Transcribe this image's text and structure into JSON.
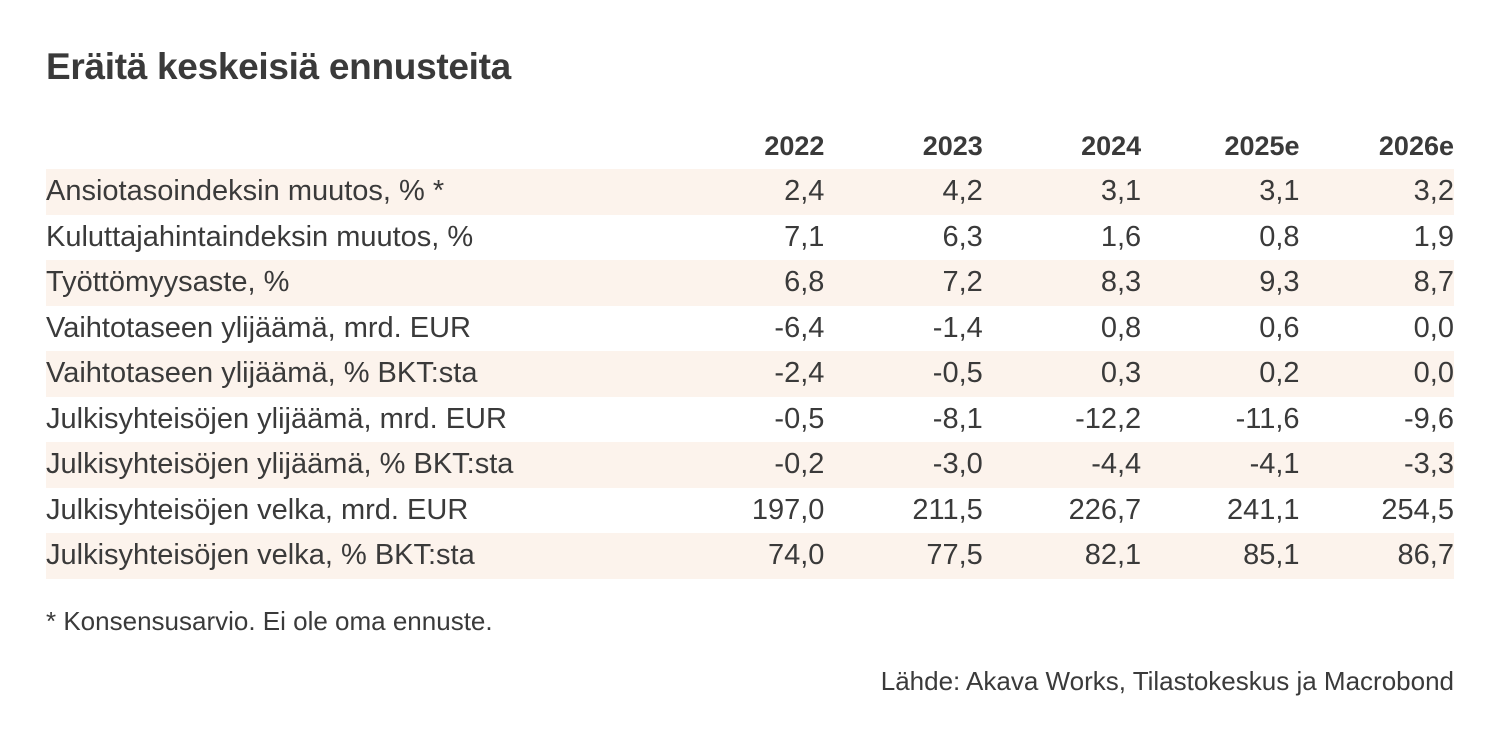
{
  "chart_data": {
    "type": "table",
    "title": "Eräitä keskeisiä ennusteita",
    "columns": [
      "2022",
      "2023",
      "2024",
      "2025e",
      "2026e"
    ],
    "rows": [
      {
        "label": "Ansiotasoindeksin muutos, % *",
        "values": [
          "2,4",
          "4,2",
          "3,1",
          "3,1",
          "3,2"
        ]
      },
      {
        "label": "Kuluttajahintaindeksin muutos, %",
        "values": [
          "7,1",
          "6,3",
          "1,6",
          "0,8",
          "1,9"
        ]
      },
      {
        "label": "Työttömyysaste, %",
        "values": [
          "6,8",
          "7,2",
          "8,3",
          "9,3",
          "8,7"
        ]
      },
      {
        "label": "Vaihtotaseen ylijäämä, mrd. EUR",
        "values": [
          "-6,4",
          "-1,4",
          "0,8",
          "0,6",
          "0,0"
        ]
      },
      {
        "label": "Vaihtotaseen ylijäämä, % BKT:sta",
        "values": [
          "-2,4",
          "-0,5",
          "0,3",
          "0,2",
          "0,0"
        ]
      },
      {
        "label": "Julkisyhteisöjen ylijäämä, mrd. EUR",
        "values": [
          "-0,5",
          "-8,1",
          "-12,2",
          "-11,6",
          "-9,6"
        ]
      },
      {
        "label": "Julkisyhteisöjen ylijäämä, % BKT:sta",
        "values": [
          "-0,2",
          "-3,0",
          "-4,4",
          "-4,1",
          "-3,3"
        ]
      },
      {
        "label": "Julkisyhteisöjen velka, mrd. EUR",
        "values": [
          "197,0",
          "211,5",
          "226,7",
          "241,1",
          "254,5"
        ]
      },
      {
        "label": "Julkisyhteisöjen velka, % BKT:sta",
        "values": [
          "74,0",
          "77,5",
          "82,1",
          "85,1",
          "86,7"
        ]
      }
    ],
    "footnote": "* Konsensusarvio. Ei ole oma ennuste.",
    "source": "Lähde: Akava Works, Tilastokeskus ja Macrobond"
  },
  "colors": {
    "text": "#3a3a3a",
    "row_shade": "#fcf3ec",
    "background": "#ffffff"
  }
}
